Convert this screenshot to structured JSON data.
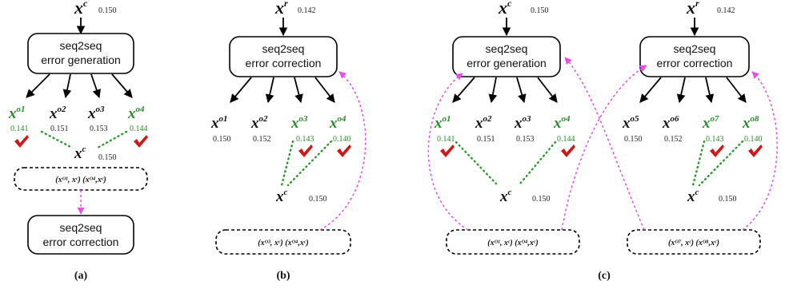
{
  "nodes": {
    "xc": "x",
    "xc_sup": "c",
    "xr": "x",
    "xr_sup": "r",
    "score_xc": "0.150",
    "score_xr": "0.142"
  },
  "boxes": {
    "gen_line1": "seq2seq",
    "gen_line2": "error generation",
    "cor_line1": "seq2seq",
    "cor_line2": "error correction"
  },
  "outputs": {
    "o1": "o1",
    "o2": "o2",
    "o3": "o3",
    "o4": "o4",
    "o5": "o5",
    "o6": "o6",
    "o7": "o7",
    "o8": "o8"
  },
  "scores": {
    "a": [
      "0.141",
      "0.151",
      "0.153",
      "0.144"
    ],
    "b": [
      "0.150",
      "0.152",
      "0.143",
      "0.140"
    ],
    "c_gen": [
      "0.141",
      "0.151",
      "0.153",
      "0.144"
    ],
    "c_cor": [
      "0.150",
      "0.152",
      "0.143",
      "0.140"
    ]
  },
  "pairs": {
    "a": "(xᴼ¹, xᶜ)  (xᴼ⁴,xᶜ)",
    "b": "(xᴼ³, xᶜ) (xᴼ⁴,xᶜ)",
    "c1": "(xᴼ¹, xᶜ)  (xᴼ⁴,xᶜ)",
    "c2": "(xᴼ⁷, xᶜ)   (xᴼ⁸,xᶜ)"
  },
  "panels": {
    "a": "(a)",
    "b": "(b)",
    "c": "(c)"
  },
  "colors": {
    "selected": "#2a8a2a",
    "check": "#cc1a1a",
    "feedback": "#e84de8"
  }
}
